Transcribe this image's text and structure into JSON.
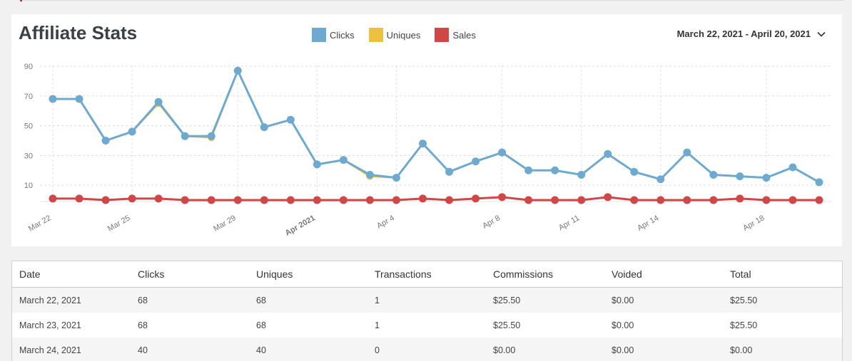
{
  "header": {
    "title": "Affiliate Stats",
    "date_range": "March 22, 2021 - April 20, 2021"
  },
  "legend": [
    {
      "label": "Clicks",
      "color": "#6eaacf"
    },
    {
      "label": "Uniques",
      "color": "#ecc13f"
    },
    {
      "label": "Sales",
      "color": "#cf4747"
    }
  ],
  "chart_data": {
    "type": "line",
    "x": [
      "Mar 22",
      "Mar 23",
      "Mar 24",
      "Mar 25",
      "Mar 26",
      "Mar 27",
      "Mar 28",
      "Mar 29",
      "Mar 30",
      "Mar 31",
      "Apr 1",
      "Apr 2",
      "Apr 3",
      "Apr 4",
      "Apr 5",
      "Apr 6",
      "Apr 7",
      "Apr 8",
      "Apr 9",
      "Apr 10",
      "Apr 11",
      "Apr 12",
      "Apr 13",
      "Apr 14",
      "Apr 15",
      "Apr 16",
      "Apr 17",
      "Apr 18",
      "Apr 19",
      "Apr 20"
    ],
    "tick_labels": [
      {
        "index": 0,
        "label": "Mar 22",
        "bold": false
      },
      {
        "index": 3,
        "label": "Mar 25",
        "bold": false
      },
      {
        "index": 7,
        "label": "Mar 29",
        "bold": false
      },
      {
        "index": 10,
        "label": "Apr 2021",
        "bold": true
      },
      {
        "index": 13,
        "label": "Apr 4",
        "bold": false
      },
      {
        "index": 17,
        "label": "Apr 8",
        "bold": false
      },
      {
        "index": 20,
        "label": "Apr 11",
        "bold": false
      },
      {
        "index": 23,
        "label": "Apr 14",
        "bold": false
      },
      {
        "index": 27,
        "label": "Apr 18",
        "bold": false
      }
    ],
    "y_ticks": [
      10,
      30,
      50,
      70,
      90
    ],
    "ylim": [
      0,
      92
    ],
    "series": [
      {
        "name": "Clicks",
        "color": "#6eaacf",
        "values": [
          68,
          68,
          40,
          46,
          66,
          43,
          43,
          87,
          49,
          54,
          24,
          27,
          17,
          15,
          38,
          19,
          26,
          32,
          20,
          20,
          17,
          31,
          19,
          14,
          32,
          17,
          16,
          15,
          22,
          12
        ]
      },
      {
        "name": "Uniques",
        "color": "#ecc13f",
        "values": [
          68,
          68,
          40,
          46,
          65,
          43,
          42,
          87,
          49,
          54,
          24,
          27,
          16,
          15,
          38,
          19,
          26,
          32,
          20,
          20,
          17,
          31,
          19,
          14,
          32,
          17,
          16,
          15,
          22,
          12
        ]
      },
      {
        "name": "Sales",
        "color": "#cf4747",
        "values": [
          1,
          1,
          0,
          1,
          1,
          0,
          0,
          0,
          0,
          0,
          0,
          0,
          0,
          0,
          1,
          0,
          1,
          2,
          0,
          0,
          0,
          2,
          0,
          0,
          0,
          0,
          1,
          0,
          0,
          0
        ]
      }
    ],
    "grid": true,
    "legend_position": "top-center"
  },
  "table": {
    "columns": [
      "Date",
      "Clicks",
      "Uniques",
      "Transactions",
      "Commissions",
      "Voided",
      "Total"
    ],
    "rows": [
      [
        "March 22, 2021",
        "68",
        "68",
        "1",
        "$25.50",
        "$0.00",
        "$25.50"
      ],
      [
        "March 23, 2021",
        "68",
        "68",
        "1",
        "$25.50",
        "$0.00",
        "$25.50"
      ],
      [
        "March 24, 2021",
        "40",
        "40",
        "0",
        "$0.00",
        "$0.00",
        "$0.00"
      ]
    ]
  }
}
